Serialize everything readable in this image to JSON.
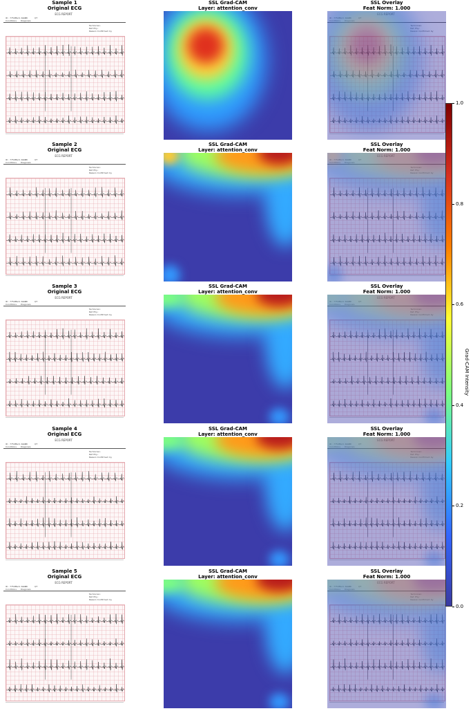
{
  "samples": [
    {
      "sample_title": "Sample 1",
      "orig_title": "Original ECG",
      "cam_title": "SSL Grad-CAM",
      "cam_layer": "Layer: attention_conv",
      "overlay_title": "SSL Overlay",
      "overlay_sub": "",
      "hotspot": "upper-left"
    },
    {
      "sample_title": "Sample 2",
      "orig_title": "Original ECG",
      "cam_title": "SSL Grad-CAM",
      "cam_layer": "Layer: attention_conv",
      "overlay_title": "SSL Overlay",
      "overlay_sub": "Feat Norm: 1.000",
      "hotspot": "top-right"
    },
    {
      "sample_title": "Sample 3",
      "orig_title": "Original ECG",
      "cam_title": "SSL Grad-CAM",
      "cam_layer": "Layer: attention_conv",
      "overlay_title": "SSL Overlay",
      "overlay_sub": "Feat Norm: 1.000",
      "hotspot": "top-right"
    },
    {
      "sample_title": "Sample 4",
      "orig_title": "Original ECG",
      "cam_title": "SSL Grad-CAM",
      "cam_layer": "Layer: attention_conv",
      "overlay_title": "SSL Overlay",
      "overlay_sub": "Feat Norm: 1.000",
      "hotspot": "top-right"
    },
    {
      "sample_title": "Sample 5",
      "orig_title": "Original ECG",
      "cam_title": "SSL Grad-CAM",
      "cam_layer": "Layer: attention_conv",
      "overlay_title": "SSL Overlay",
      "overlay_sub": "Feat Norm: 1.000",
      "hotspot": "top-right"
    }
  ],
  "first_overlay_sub": "Feat Norm: 1.000",
  "ecg_header": {
    "report_title": "ECG REPORT",
    "left_fields": [
      "ID : 77597",
      "Vent. Rate",
      "PR",
      "QT",
      "Conditions",
      "Diagnosis"
    ],
    "right_fields": [
      "Technician:",
      "Ref. Phy.:",
      "Reason Confirmed: by"
    ]
  },
  "colorbar": {
    "label": "Grad-CAM Intensity",
    "ticks": [
      "1.0",
      "0.8",
      "0.6",
      "0.4",
      "0.2",
      "0.0"
    ],
    "min": 0.0,
    "max": 1.0,
    "colors": [
      "#7f0000",
      "#d7301f",
      "#ff7f00",
      "#ffff33",
      "#7fff7f",
      "#33ccff",
      "#3366ff",
      "#3a3aa0"
    ]
  }
}
